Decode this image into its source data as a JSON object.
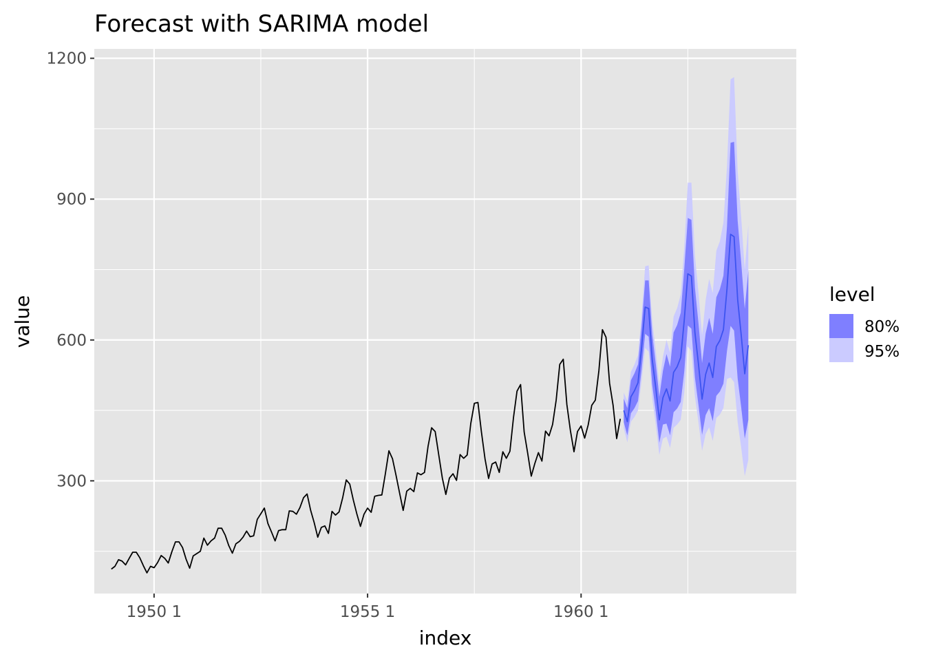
{
  "chart_data": {
    "type": "line",
    "title": "Forecast with SARIMA model",
    "xlabel": "index",
    "ylabel": "value",
    "x_ticks": [
      {
        "x": 1950,
        "label": "1950  1"
      },
      {
        "x": 1955,
        "label": "1955  1"
      },
      {
        "x": 1960,
        "label": "1960  1"
      }
    ],
    "y_ticks": [
      300,
      600,
      900,
      1200
    ],
    "xlim": [
      1948.6,
      1965.04
    ],
    "ylim": [
      60,
      1220
    ],
    "grid": true,
    "legend": {
      "title": "level",
      "position": "right",
      "items": [
        {
          "label": "80%",
          "color": "#7f7fff"
        },
        {
          "label": "95%",
          "color": "#cbcbff"
        }
      ]
    },
    "colors": {
      "history_line": "#000000",
      "forecast_line": "#3c53f0",
      "band_80": "#7f7fff",
      "band_95": "#cbcbff",
      "panel": "#e5e5e5",
      "grid": "#ffffff"
    },
    "history": {
      "name": "",
      "start": 1949.0,
      "step": 0.0833333,
      "values": [
        112,
        118,
        132,
        129,
        121,
        135,
        148,
        148,
        136,
        119,
        104,
        118,
        115,
        126,
        141,
        135,
        125,
        149,
        170,
        170,
        158,
        133,
        114,
        140,
        145,
        150,
        178,
        163,
        172,
        178,
        199,
        199,
        184,
        162,
        146,
        166,
        171,
        180,
        193,
        181,
        183,
        218,
        230,
        242,
        209,
        191,
        172,
        194,
        196,
        196,
        236,
        235,
        229,
        243,
        264,
        272,
        237,
        211,
        180,
        201,
        204,
        188,
        235,
        227,
        234,
        264,
        302,
        293,
        259,
        229,
        203,
        229,
        242,
        233,
        267,
        269,
        270,
        315,
        364,
        347,
        312,
        274,
        237,
        278,
        284,
        277,
        317,
        313,
        318,
        374,
        413,
        405,
        355,
        306,
        271,
        306,
        315,
        301,
        356,
        348,
        355,
        422,
        465,
        467,
        404,
        347,
        305,
        336,
        340,
        318,
        362,
        348,
        363,
        435,
        491,
        505,
        404,
        359,
        310,
        337,
        360,
        342,
        406,
        396,
        420,
        472,
        548,
        559,
        463,
        407,
        362,
        405,
        417,
        391,
        419,
        461,
        472,
        535,
        622,
        606,
        508,
        461,
        390,
        432
      ]
    },
    "forecast": {
      "name": "",
      "start": 1961.0,
      "step": 0.0833333,
      "mean": [
        450,
        426,
        479,
        492,
        509,
        583,
        670,
        667,
        558,
        497,
        430,
        477,
        496,
        470,
        531,
        543,
        563,
        642,
        741,
        736,
        616,
        548,
        474,
        527,
        551,
        520,
        586,
        599,
        622,
        709,
        825,
        820,
        686,
        610,
        528,
        589
      ],
      "lo80": [
        425,
        397,
        444,
        455,
        470,
        537,
        613,
        607,
        504,
        446,
        381,
        420,
        422,
        397,
        446,
        454,
        468,
        533,
        631,
        624,
        520,
        461,
        398,
        440,
        455,
        427,
        481,
        490,
        507,
        577,
        630,
        620,
        518,
        456,
        390,
        430
      ],
      "hi80": [
        475,
        455,
        514,
        529,
        548,
        629,
        727,
        727,
        612,
        548,
        479,
        534,
        570,
        543,
        616,
        632,
        658,
        751,
        860,
        856,
        712,
        635,
        551,
        614,
        647,
        613,
        691,
        708,
        737,
        841,
        1020,
        1022,
        854,
        764,
        666,
        748
      ],
      "lo95": [
        412,
        382,
        426,
        436,
        450,
        513,
        583,
        575,
        475,
        419,
        355,
        390,
        394,
        370,
        413,
        420,
        430,
        488,
        586,
        577,
        480,
        424,
        364,
        400,
        414,
        385,
        434,
        441,
        455,
        517,
        520,
        510,
        425,
        370,
        310,
        345
      ],
      "hi95": [
        488,
        470,
        532,
        548,
        568,
        653,
        757,
        759,
        641,
        575,
        505,
        564,
        600,
        573,
        650,
        668,
        697,
        797,
        935,
        935,
        780,
        700,
        610,
        685,
        730,
        700,
        790,
        810,
        850,
        970,
        1155,
        1160,
        960,
        860,
        750,
        845
      ]
    }
  }
}
